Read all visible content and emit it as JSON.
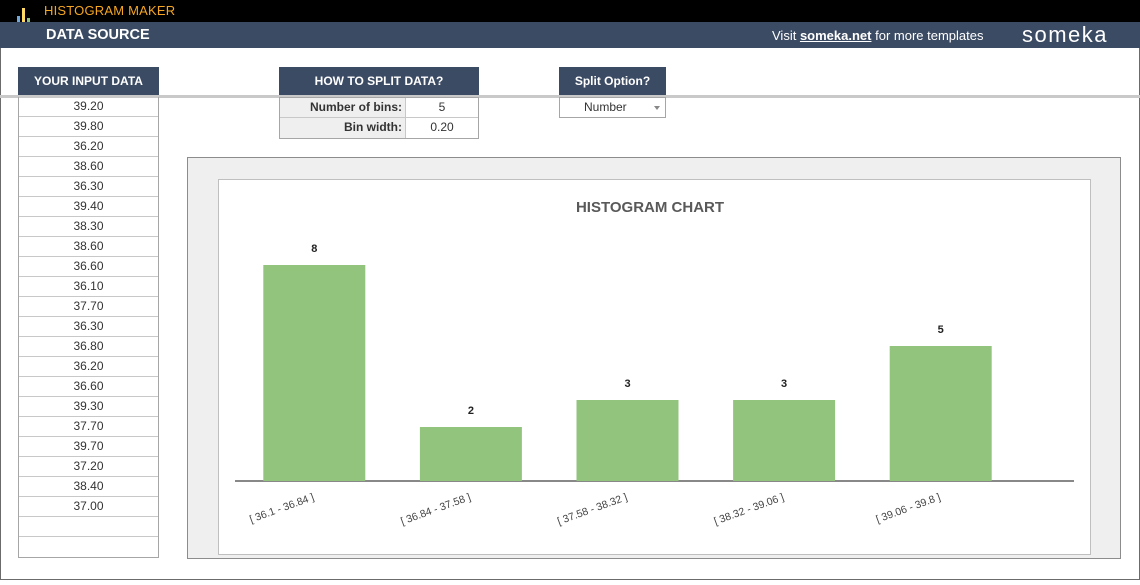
{
  "header": {
    "app_title": "HISTOGRAM MAKER",
    "section_title": "DATA SOURCE",
    "visit_prefix": "Visit ",
    "visit_link": "someka.net",
    "visit_suffix": " for more templates",
    "brand": "someka"
  },
  "input_data": {
    "header": "YOUR INPUT DATA",
    "values": [
      "39.20",
      "39.80",
      "36.20",
      "38.60",
      "36.30",
      "39.40",
      "38.30",
      "38.60",
      "36.60",
      "36.10",
      "37.70",
      "36.30",
      "36.80",
      "36.20",
      "36.60",
      "39.30",
      "37.70",
      "39.70",
      "37.20",
      "38.40",
      "37.00",
      "",
      ""
    ]
  },
  "split": {
    "header": "HOW TO SPLIT DATA?",
    "bins_label": "Number of bins:",
    "bins_value": "5",
    "width_label": "Bin width:",
    "width_value": "0.20"
  },
  "split_option": {
    "header": "Split Option?",
    "selected": "Number"
  },
  "colors": {
    "bar": "#93c47d",
    "header_bg": "#3c4b64",
    "accent": "#f5a623"
  },
  "chart_data": {
    "type": "bar",
    "title": "HISTOGRAM CHART",
    "categories": [
      "[ 36.1 - 36.84 ]",
      "[ 36.84 - 37.58 ]",
      "[ 37.58 - 38.32 ]",
      "[ 38.32 - 39.06 ]",
      "[ 39.06 - 39.8 ]"
    ],
    "values": [
      8,
      2,
      3,
      3,
      5
    ],
    "ylim": [
      0,
      8
    ],
    "grid": false,
    "legend": "none",
    "data_labels": true
  }
}
